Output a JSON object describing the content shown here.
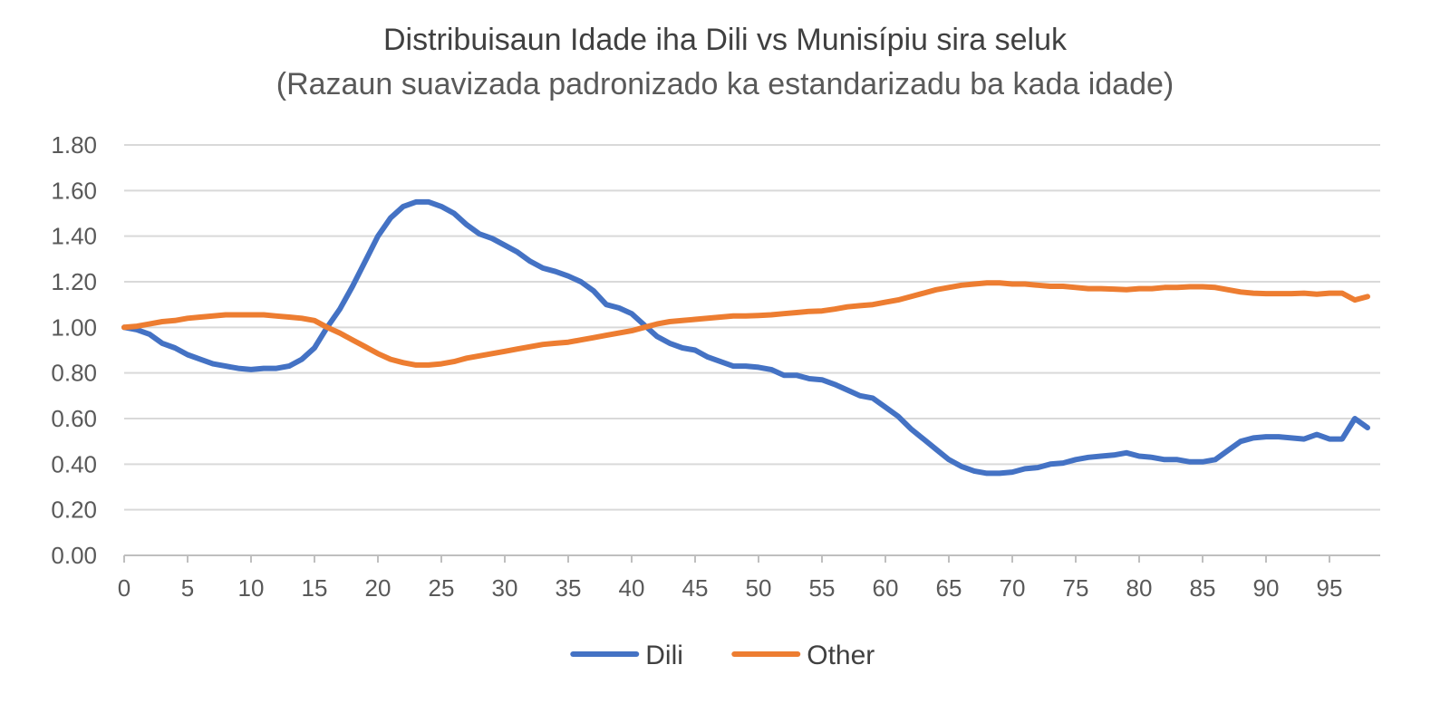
{
  "chart_data": {
    "type": "line",
    "title": "Distribuisaun Idade iha Dili vs Munisípiu sira seluk",
    "subtitle": "(Razaun suavizada padronizado ka estandarizadu ba kada idade)",
    "xlabel": "",
    "ylabel": "",
    "xlim": [
      0,
      99
    ],
    "ylim": [
      0,
      1.8
    ],
    "x_tick_labels": [
      "0",
      "5",
      "10",
      "15",
      "20",
      "25",
      "30",
      "35",
      "40",
      "45",
      "50",
      "55",
      "60",
      "65",
      "70",
      "75",
      "80",
      "85",
      "90",
      "95"
    ],
    "y_tick_labels": [
      "0.00",
      "0.20",
      "0.40",
      "0.60",
      "0.80",
      "1.00",
      "1.20",
      "1.40",
      "1.60",
      "1.80"
    ],
    "grid": true,
    "legend_position": "bottom",
    "series": [
      {
        "name": "Dili",
        "color": "#4472c4",
        "x": [
          0,
          1,
          2,
          3,
          4,
          5,
          6,
          7,
          8,
          9,
          10,
          11,
          12,
          13,
          14,
          15,
          16,
          17,
          18,
          19,
          20,
          21,
          22,
          23,
          24,
          25,
          26,
          27,
          28,
          29,
          30,
          31,
          32,
          33,
          34,
          35,
          36,
          37,
          38,
          39,
          40,
          41,
          42,
          43,
          44,
          45,
          46,
          47,
          48,
          49,
          50,
          51,
          52,
          53,
          54,
          55,
          56,
          57,
          58,
          59,
          60,
          61,
          62,
          63,
          64,
          65,
          66,
          67,
          68,
          69,
          70,
          71,
          72,
          73,
          74,
          75,
          76,
          77,
          78,
          79,
          80,
          81,
          82,
          83,
          84,
          85,
          86,
          87,
          88,
          89,
          90,
          91,
          92,
          93,
          94,
          95,
          96,
          97,
          98
        ],
        "values": [
          1.0,
          0.99,
          0.97,
          0.93,
          0.91,
          0.88,
          0.86,
          0.84,
          0.83,
          0.82,
          0.815,
          0.82,
          0.82,
          0.83,
          0.86,
          0.91,
          1.0,
          1.08,
          1.18,
          1.29,
          1.4,
          1.48,
          1.53,
          1.55,
          1.55,
          1.53,
          1.5,
          1.45,
          1.41,
          1.39,
          1.36,
          1.33,
          1.29,
          1.26,
          1.245,
          1.225,
          1.2,
          1.16,
          1.1,
          1.085,
          1.06,
          1.01,
          0.96,
          0.93,
          0.91,
          0.9,
          0.87,
          0.85,
          0.83,
          0.83,
          0.825,
          0.815,
          0.79,
          0.79,
          0.775,
          0.77,
          0.75,
          0.725,
          0.7,
          0.69,
          0.65,
          0.61,
          0.555,
          0.51,
          0.465,
          0.42,
          0.39,
          0.37,
          0.36,
          0.36,
          0.365,
          0.38,
          0.385,
          0.4,
          0.405,
          0.42,
          0.43,
          0.435,
          0.44,
          0.45,
          0.435,
          0.43,
          0.42,
          0.42,
          0.41,
          0.41,
          0.42,
          0.46,
          0.5,
          0.515,
          0.52,
          0.52,
          0.515,
          0.51,
          0.53,
          0.51,
          0.51,
          0.6,
          0.56
        ]
      },
      {
        "name": "Other",
        "color": "#ed7d31",
        "x": [
          0,
          1,
          2,
          3,
          4,
          5,
          6,
          7,
          8,
          9,
          10,
          11,
          12,
          13,
          14,
          15,
          16,
          17,
          18,
          19,
          20,
          21,
          22,
          23,
          24,
          25,
          26,
          27,
          28,
          29,
          30,
          31,
          32,
          33,
          34,
          35,
          36,
          37,
          38,
          39,
          40,
          41,
          42,
          43,
          44,
          45,
          46,
          47,
          48,
          49,
          50,
          51,
          52,
          53,
          54,
          55,
          56,
          57,
          58,
          59,
          60,
          61,
          62,
          63,
          64,
          65,
          66,
          67,
          68,
          69,
          70,
          71,
          72,
          73,
          74,
          75,
          76,
          77,
          78,
          79,
          80,
          81,
          82,
          83,
          84,
          85,
          86,
          87,
          88,
          89,
          90,
          91,
          92,
          93,
          94,
          95,
          96,
          97,
          98
        ],
        "values": [
          1.0,
          1.005,
          1.015,
          1.025,
          1.03,
          1.04,
          1.045,
          1.05,
          1.055,
          1.055,
          1.055,
          1.055,
          1.05,
          1.045,
          1.04,
          1.03,
          1.0,
          0.975,
          0.945,
          0.915,
          0.885,
          0.86,
          0.845,
          0.835,
          0.835,
          0.84,
          0.85,
          0.865,
          0.875,
          0.885,
          0.895,
          0.905,
          0.915,
          0.925,
          0.93,
          0.935,
          0.945,
          0.955,
          0.965,
          0.975,
          0.985,
          1.0,
          1.015,
          1.025,
          1.03,
          1.035,
          1.04,
          1.045,
          1.05,
          1.05,
          1.052,
          1.055,
          1.06,
          1.065,
          1.07,
          1.072,
          1.08,
          1.09,
          1.095,
          1.1,
          1.11,
          1.12,
          1.135,
          1.15,
          1.165,
          1.175,
          1.185,
          1.19,
          1.195,
          1.195,
          1.19,
          1.19,
          1.185,
          1.18,
          1.18,
          1.175,
          1.17,
          1.17,
          1.168,
          1.165,
          1.17,
          1.17,
          1.175,
          1.175,
          1.178,
          1.178,
          1.175,
          1.165,
          1.155,
          1.15,
          1.148,
          1.148,
          1.148,
          1.15,
          1.145,
          1.15,
          1.15,
          1.12,
          1.135
        ]
      }
    ]
  }
}
